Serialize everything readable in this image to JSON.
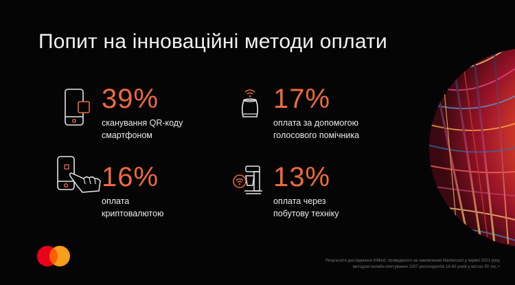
{
  "title": "Попит на інноваційні методи оплати",
  "stats": [
    {
      "value": "39%",
      "line1": "сканування QR-коду",
      "line2": "смартфоном",
      "icon": "smartphone-qr-icon"
    },
    {
      "value": "17%",
      "line1": "оплата за допомогою",
      "line2": "голосового помічника",
      "icon": "voice-assistant-icon"
    },
    {
      "value": "16%",
      "line1": "оплата",
      "line2": "криптовалютою",
      "icon": "phone-tap-hand-icon"
    },
    {
      "value": "13%",
      "line1": "оплата через",
      "line2": "побутову техніку",
      "icon": "smart-appliance-icon"
    }
  ],
  "footnote": {
    "line1": "Результати дослідження InMind, проведеного на замовлення Mastercard у червні 2021 року",
    "line2": "методом онлайн-опитування 1007 респондентів 18-60 років у містах 50 тис.+"
  },
  "colors": {
    "accent": "#ef6a3c",
    "background": "#050505",
    "text": "#ececec"
  },
  "logo": "mastercard-logo"
}
